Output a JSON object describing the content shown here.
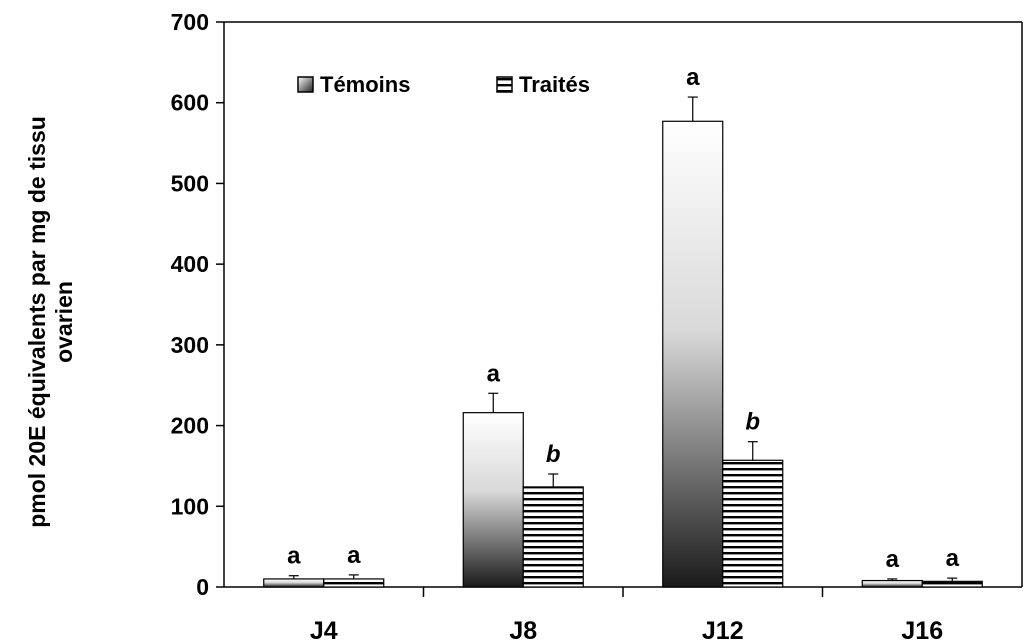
{
  "chart_data": {
    "type": "bar",
    "ylabel_lines": [
      "pmol 20E équivalents par mg de tissu",
      "ovarien"
    ],
    "xlabel": "",
    "categories": [
      "J4",
      "J8",
      "J12",
      "J16"
    ],
    "ylim": [
      0,
      700
    ],
    "yticks": [
      0,
      100,
      200,
      300,
      400,
      500,
      600,
      700
    ],
    "grid": false,
    "legend_position": "top-left",
    "series": [
      {
        "name": "Témoins",
        "pattern": "gradient",
        "values": [
          10,
          216,
          577,
          8
        ],
        "errors": [
          4,
          24,
          30,
          2
        ],
        "significance": [
          "a",
          "a",
          "a",
          "a"
        ]
      },
      {
        "name": "Traités",
        "pattern": "horizontal-stripes",
        "values": [
          10,
          124,
          157,
          7
        ],
        "errors": [
          5,
          16,
          23,
          4
        ],
        "significance": [
          "a",
          "b",
          "b",
          "a"
        ]
      }
    ]
  }
}
